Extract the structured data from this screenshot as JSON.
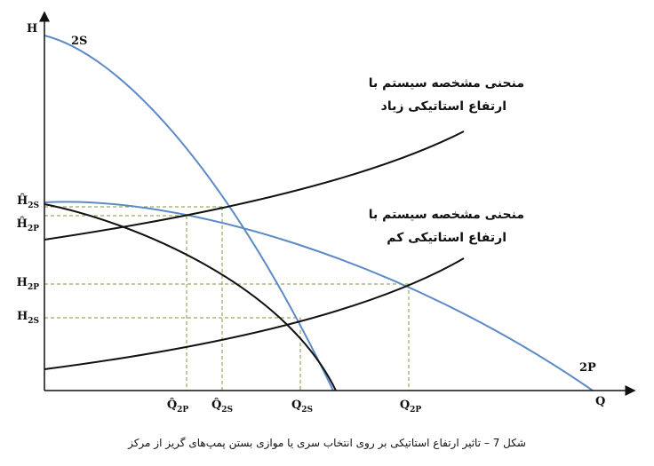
{
  "axes": {
    "y_label": "H",
    "x_label": "Q"
  },
  "curve_labels": {
    "series": "2S",
    "parallel": "2P"
  },
  "annotations": [
    {
      "line1": "منحنی مشخصه سیستم با",
      "line2": "ارتفاع استاتیکی زیاد"
    },
    {
      "line1": "منحنی مشخصه سیستم با",
      "line2": "ارتفاع استاتیکی کم"
    }
  ],
  "y_labels": [
    {
      "main": "Ĥ",
      "sub": "2S"
    },
    {
      "main": "Ĥ",
      "sub": "2P"
    },
    {
      "main": "H",
      "sub": "2P"
    },
    {
      "main": "H",
      "sub": "2S"
    }
  ],
  "x_labels": [
    {
      "main": "Q̂",
      "sub": "2P"
    },
    {
      "main": "Q̂",
      "sub": "2S"
    },
    {
      "main": "Q",
      "sub": "2S"
    },
    {
      "main": "Q",
      "sub": "2P"
    }
  ],
  "caption": "شکل 7 – تاثیر ارتفاع استاتیکی بر روی انتخاب سری یا موازی بستن پمپ‌های گریز از مرکز"
}
